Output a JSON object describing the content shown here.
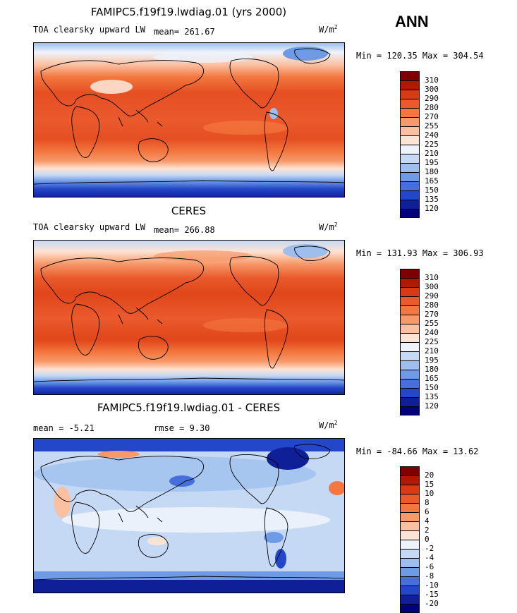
{
  "season": "ANN",
  "panels": [
    {
      "title": "FAMIPC5.f19f19.lwdiag.01 (yrs 2000)",
      "left_label": "TOA clearsky upward LW",
      "stat_label": "mean= 261.67",
      "units": "W/m",
      "units_sup": "2",
      "minmax": "Min = 120.35 Max = 304.54",
      "colorbar": {
        "labels": [
          "310",
          "300",
          "290",
          "280",
          "270",
          "255",
          "240",
          "225",
          "210",
          "195",
          "180",
          "165",
          "150",
          "135",
          "120"
        ],
        "colors": [
          "#7f0000",
          "#b01800",
          "#d93a14",
          "#ea5a2d",
          "#f3773f",
          "#f7996a",
          "#fbc0a2",
          "#fde3d4",
          "#eef3fb",
          "#c6d9f4",
          "#9ebfee",
          "#6f9be6",
          "#466fdc",
          "#2446c8",
          "#0e1f98",
          "#00007d"
        ]
      }
    },
    {
      "title": "CERES",
      "left_label": "TOA clearsky upward LW",
      "stat_label": "mean= 266.88",
      "units": "W/m",
      "units_sup": "2",
      "minmax": "Min = 131.93 Max = 306.93",
      "colorbar": {
        "labels": [
          "310",
          "300",
          "290",
          "280",
          "270",
          "255",
          "240",
          "225",
          "210",
          "195",
          "180",
          "165",
          "150",
          "135",
          "120"
        ],
        "colors": [
          "#7f0000",
          "#b01800",
          "#d93a14",
          "#ea5a2d",
          "#f3773f",
          "#f7996a",
          "#fbc0a2",
          "#fde3d4",
          "#eef3fb",
          "#c6d9f4",
          "#9ebfee",
          "#6f9be6",
          "#466fdc",
          "#2446c8",
          "#0e1f98",
          "#00007d"
        ]
      }
    },
    {
      "title": "FAMIPC5.f19f19.lwdiag.01 - CERES",
      "left_label": "mean =  -5.21",
      "stat_label": "rmse =   9.30",
      "units": "W/m",
      "units_sup": "2",
      "minmax": "Min = -84.66 Max =  13.62",
      "colorbar": {
        "labels": [
          "20",
          "15",
          "10",
          "8",
          "6",
          "4",
          "2",
          "0",
          "-2",
          "-4",
          "-6",
          "-8",
          "-10",
          "-15",
          "-20"
        ],
        "colors": [
          "#7f0000",
          "#b01800",
          "#d93a14",
          "#ea5a2d",
          "#f3773f",
          "#f7996a",
          "#fbc0a2",
          "#fde3d4",
          "#eef3fb",
          "#c6d9f4",
          "#9ebfee",
          "#6f9be6",
          "#466fdc",
          "#2446c8",
          "#0e1f98",
          "#00007d"
        ]
      }
    }
  ]
}
